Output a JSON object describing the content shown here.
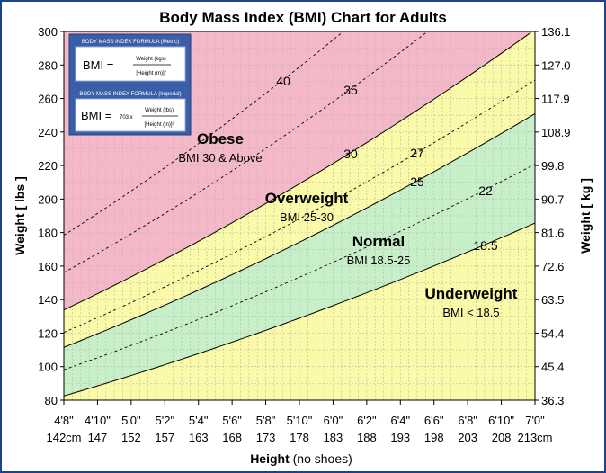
{
  "chart_data": {
    "type": "area",
    "title": "Body Mass Index (BMI) Chart for Adults",
    "xlabel_main": "Height",
    "xlabel_note": "(no shoes)",
    "ylabel_left": "Weight [ lbs ]",
    "ylabel_right": "Weight [ kg ]",
    "x_unit": "inches",
    "xlim": [
      56,
      84
    ],
    "ylim": [
      80,
      300
    ],
    "x_ticks": [
      56,
      58,
      60,
      62,
      64,
      66,
      68,
      70,
      72,
      74,
      76,
      78,
      80,
      82,
      84
    ],
    "x_tick_labels_ftin": [
      "4'8\"",
      "4'10\"",
      "5'0\"",
      "5'2\"",
      "5'4\"",
      "5'6\"",
      "5'8\"",
      "5'10\"",
      "6'0\"",
      "6'2\"",
      "6'4\"",
      "6'6\"",
      "6'8\"",
      "6'10\"",
      "7'0\""
    ],
    "x_tick_labels_cm": [
      "142cm",
      "147",
      "152",
      "157",
      "163",
      "168",
      "173",
      "178",
      "183",
      "188",
      "193",
      "198",
      "203",
      "208",
      "213cm"
    ],
    "y_ticks_lbs": [
      80,
      100,
      120,
      140,
      160,
      180,
      200,
      220,
      240,
      260,
      280,
      300
    ],
    "y_ticks_kg": [
      "36.3",
      "45.4",
      "54.4",
      "63.5",
      "72.6",
      "81.6",
      "90.7",
      "99.8",
      "108.9",
      "117.9",
      "127.0",
      "136.1"
    ],
    "grid": true,
    "boundary_bmi": [
      18.5,
      25,
      30
    ],
    "dashed_bmi": [
      22,
      27,
      35,
      40
    ],
    "zones": [
      {
        "name": "Underweight",
        "range": "BMI < 18.5",
        "color": "#fafaa8"
      },
      {
        "name": "Normal",
        "range": "BMI 18.5-25",
        "color": "#c8f0c8"
      },
      {
        "name": "Overweight",
        "range": "BMI 25-30",
        "color": "#fafaa8"
      },
      {
        "name": "Obese",
        "range": "BMI 30 & Above",
        "color": "#f5b8c8"
      }
    ],
    "line_labels": [
      "40",
      "35",
      "30",
      "27",
      "25",
      "22",
      "18.5"
    ]
  },
  "formula_box": {
    "metric_title": "BODY MASS INDEX FORMULA (Metric)",
    "metric_lhs": "BMI =",
    "metric_num": "Weight (kgs)",
    "metric_den": "[Height (m)]²",
    "imperial_title": "BODY MASS INDEX FORMULA (Imperial)",
    "imperial_lhs": "BMI =",
    "imperial_factor": "703 x",
    "imperial_num": "Weight (lbs)",
    "imperial_den": "[Height (in)]²"
  },
  "colors": {
    "frame": "#1f3f8f",
    "grid": "#b8b8b8",
    "line": "#000000",
    "formula_bg": "#3a5ea8"
  }
}
